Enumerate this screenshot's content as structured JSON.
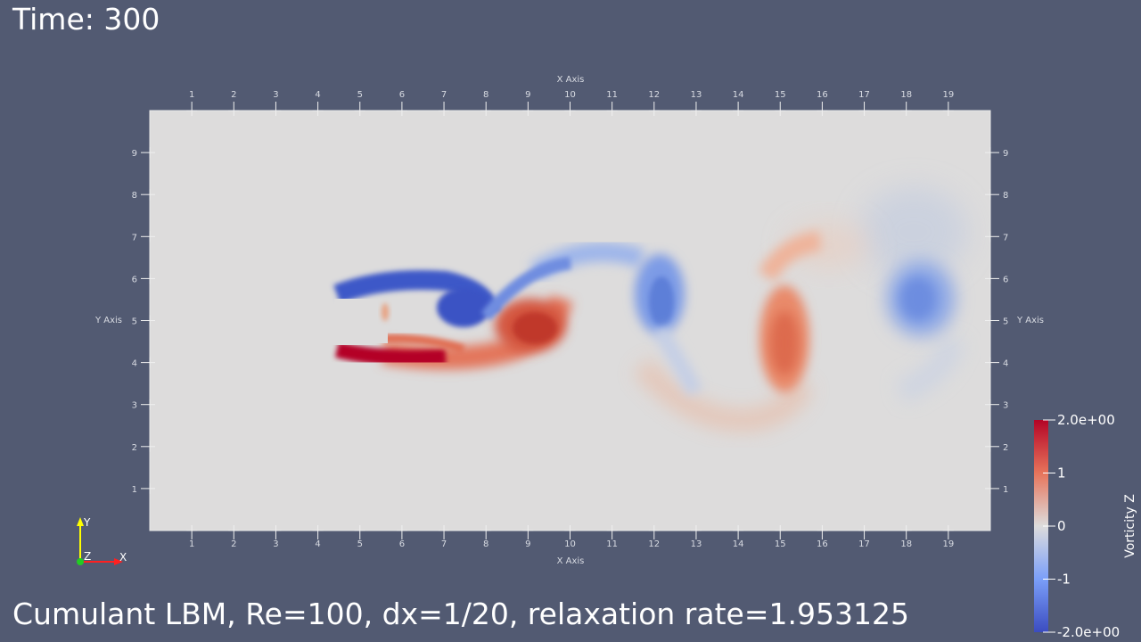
{
  "header": {
    "time_label": "Time: 300"
  },
  "caption": "Cumulant LBM, Re=100, dx=1/20, relaxation rate=1.953125",
  "axes": {
    "x_title_top": "X Axis",
    "x_title_bottom": "X Axis",
    "y_title_left": "Y Axis",
    "y_title_right": "Y Axis",
    "x_ticks": [
      "1",
      "2",
      "3",
      "4",
      "5",
      "6",
      "7",
      "8",
      "9",
      "10",
      "11",
      "12",
      "13",
      "14",
      "15",
      "16",
      "17",
      "18",
      "19"
    ],
    "y_ticks": [
      "1",
      "2",
      "3",
      "4",
      "5",
      "6",
      "7",
      "8",
      "9"
    ],
    "x_range": [
      0,
      20
    ],
    "y_range": [
      0,
      10
    ]
  },
  "colorbar": {
    "title": "Vorticity Z",
    "labels": [
      "2.0e+00",
      "1",
      "0",
      "-1",
      "-2.0e+00"
    ],
    "values": [
      2,
      1,
      0,
      -1,
      -2
    ],
    "colors": {
      "high": "#b40426",
      "mid": "#dddcdc",
      "low": "#3b4cc0"
    }
  },
  "orientation_axes": {
    "x": "X",
    "y": "Y",
    "z": "Z"
  },
  "colors": {
    "background": "#525a72",
    "domain": "#dddcdc",
    "positive_vorticity": "#b40426",
    "negative_vorticity": "#3b4cc0"
  }
}
